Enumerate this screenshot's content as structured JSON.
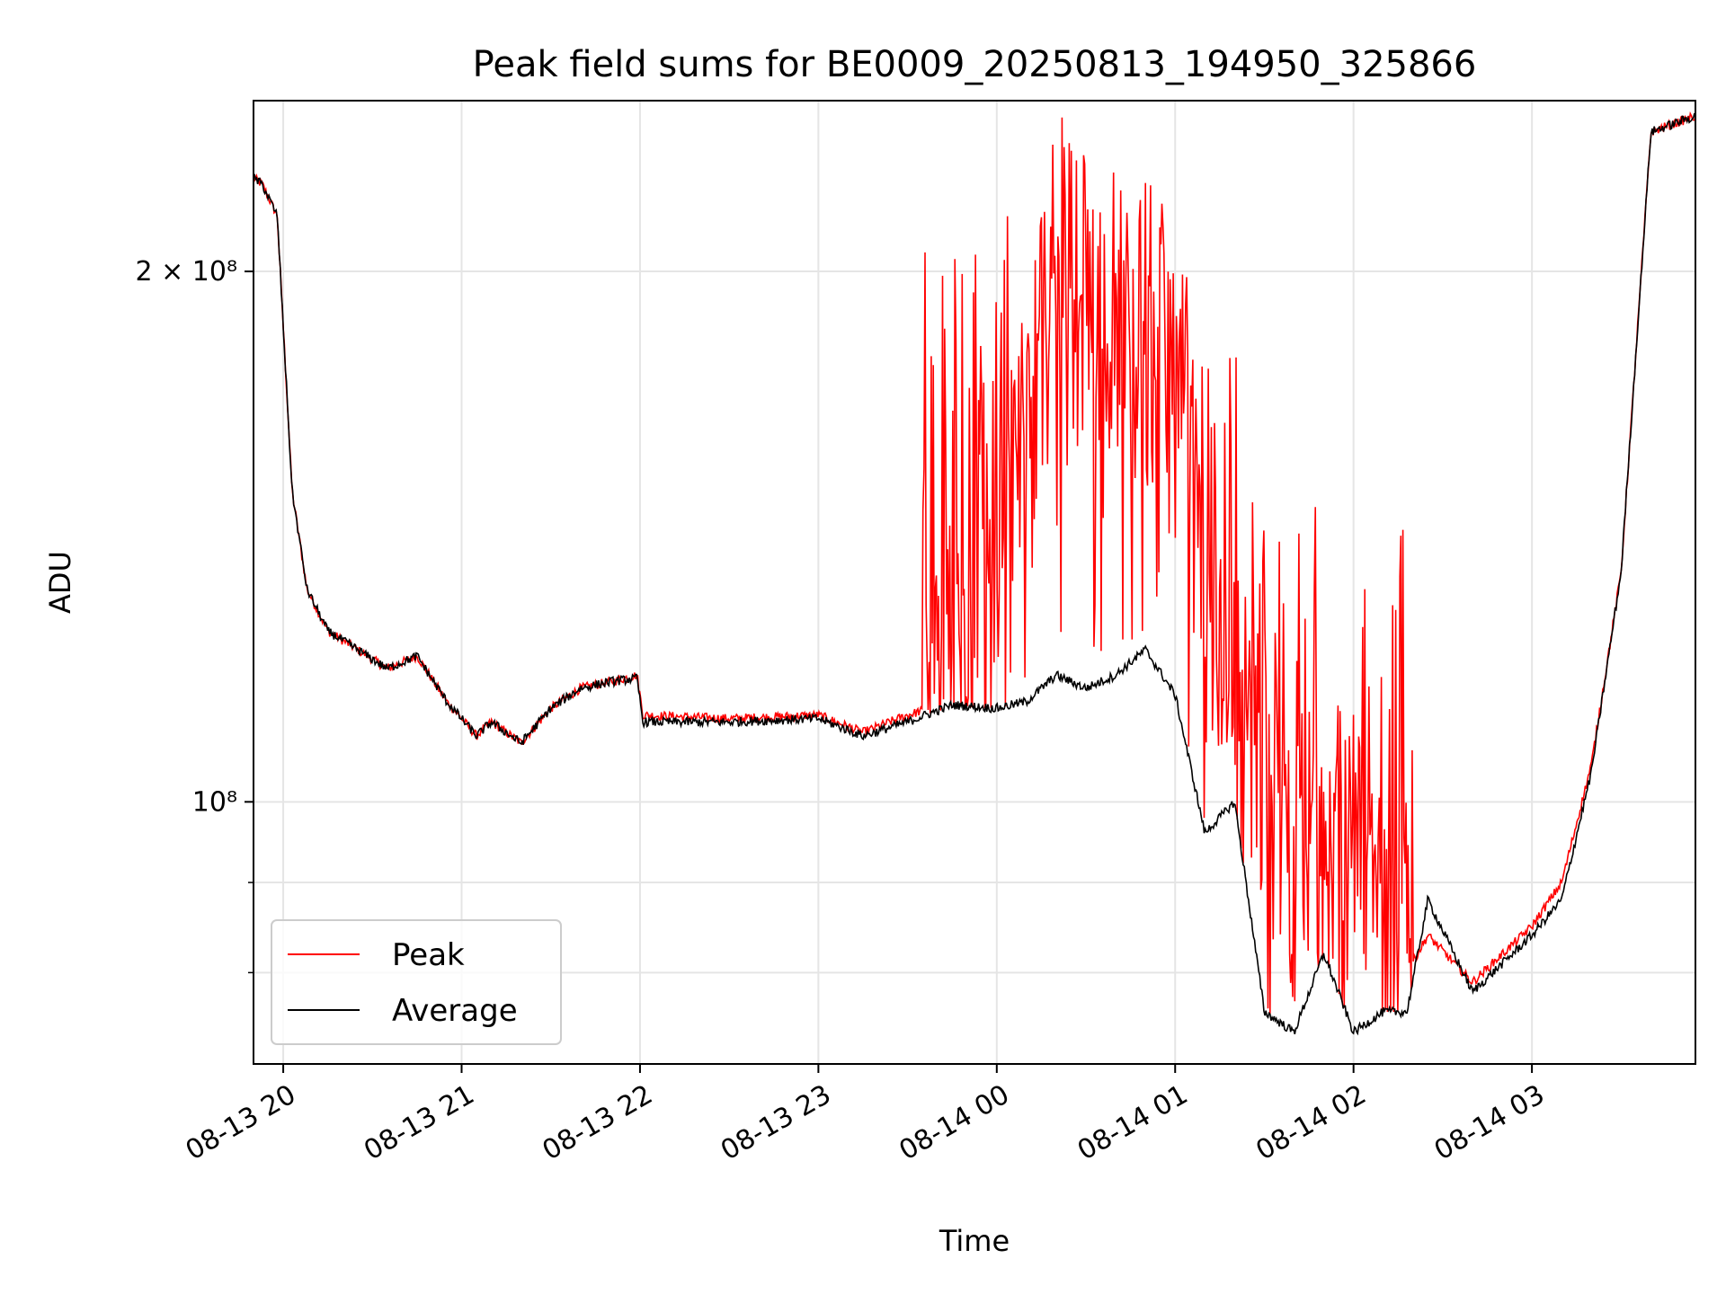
{
  "chart_data": {
    "type": "line",
    "title": "Peak field sums for BE0009_20250813_194950_325866",
    "xlabel": "Time",
    "ylabel": "ADU",
    "yscale": "log",
    "ylim": [
      71000000,
      250000000
    ],
    "xlim": [
      "2025-08-13 19:50",
      "2025-08-14 03:55"
    ],
    "grid": true,
    "legend_placement": "lower-left",
    "x_ticks": [
      {
        "value": "2025-08-13 20:00",
        "label": "08-13 20"
      },
      {
        "value": "2025-08-13 21:00",
        "label": "08-13 21"
      },
      {
        "value": "2025-08-13 22:00",
        "label": "08-13 22"
      },
      {
        "value": "2025-08-13 23:00",
        "label": "08-13 23"
      },
      {
        "value": "2025-08-14 00:00",
        "label": "08-14 00"
      },
      {
        "value": "2025-08-14 01:00",
        "label": "08-14 01"
      },
      {
        "value": "2025-08-14 02:00",
        "label": "08-14 02"
      },
      {
        "value": "2025-08-14 03:00",
        "label": "08-14 03"
      }
    ],
    "y_ticks_major": [
      {
        "value": 100000000,
        "label": "10⁸"
      },
      {
        "value": 200000000,
        "label": "2 × 10⁸"
      }
    ],
    "y_ticks_minor": [
      80000000,
      90000000
    ],
    "series": [
      {
        "name": "Peak",
        "color": "#ff0000",
        "x": [
          "2025-08-13 19:50",
          "2025-08-13 19:53",
          "2025-08-13 19:58",
          "2025-08-13 20:03",
          "2025-08-13 20:08",
          "2025-08-13 20:15",
          "2025-08-13 20:25",
          "2025-08-13 20:35",
          "2025-08-13 20:45",
          "2025-08-13 20:55",
          "2025-08-13 21:05",
          "2025-08-13 21:10",
          "2025-08-13 21:20",
          "2025-08-13 21:30",
          "2025-08-13 21:40",
          "2025-08-13 21:50",
          "2025-08-13 21:59",
          "2025-08-13 22:01",
          "2025-08-13 22:30",
          "2025-08-13 23:00",
          "2025-08-13 23:15",
          "2025-08-13 23:30",
          "2025-08-13 23:45",
          "2025-08-14 00:00",
          "2025-08-14 00:10",
          "2025-08-14 00:20",
          "2025-08-14 00:30",
          "2025-08-14 00:40",
          "2025-08-14 00:50",
          "2025-08-14 01:00",
          "2025-08-14 01:10",
          "2025-08-14 01:20",
          "2025-08-14 01:30",
          "2025-08-14 01:40",
          "2025-08-14 01:50",
          "2025-08-14 02:00",
          "2025-08-14 02:10",
          "2025-08-14 02:18",
          "2025-08-14 02:25",
          "2025-08-14 02:40",
          "2025-08-14 03:00",
          "2025-08-14 03:10",
          "2025-08-14 03:20",
          "2025-08-14 03:30",
          "2025-08-14 03:40",
          "2025-08-14 03:55"
        ],
        "values": [
          226000000,
          224000000,
          215000000,
          150000000,
          132000000,
          125000000,
          122000000,
          119000000,
          121000000,
          114000000,
          109000000,
          111000000,
          108000000,
          113000000,
          116000000,
          117000000,
          118000000,
          112000000,
          111500000,
          112000000,
          109500000,
          112000000,
          114000000,
          118000000,
          160000000,
          200000000,
          190000000,
          185000000,
          175000000,
          165000000,
          130000000,
          110000000,
          100000000,
          90000000,
          85000000,
          90000000,
          83000000,
          80000000,
          84000000,
          79000000,
          85000000,
          90000000,
          105000000,
          135000000,
          240000000,
          245000000
        ]
      },
      {
        "name": "Average",
        "color": "#000000",
        "x": [
          "2025-08-13 19:50",
          "2025-08-13 19:53",
          "2025-08-13 19:58",
          "2025-08-13 20:03",
          "2025-08-13 20:08",
          "2025-08-13 20:15",
          "2025-08-13 20:25",
          "2025-08-13 20:35",
          "2025-08-13 20:45",
          "2025-08-13 20:55",
          "2025-08-13 21:05",
          "2025-08-13 21:10",
          "2025-08-13 21:20",
          "2025-08-13 21:30",
          "2025-08-13 21:40",
          "2025-08-13 21:50",
          "2025-08-13 21:59",
          "2025-08-13 22:01",
          "2025-08-13 22:30",
          "2025-08-13 23:00",
          "2025-08-13 23:15",
          "2025-08-13 23:30",
          "2025-08-13 23:45",
          "2025-08-14 00:00",
          "2025-08-14 00:10",
          "2025-08-14 00:20",
          "2025-08-14 00:30",
          "2025-08-14 00:40",
          "2025-08-14 00:50",
          "2025-08-14 01:00",
          "2025-08-14 01:10",
          "2025-08-14 01:20",
          "2025-08-14 01:30",
          "2025-08-14 01:40",
          "2025-08-14 01:50",
          "2025-08-14 02:00",
          "2025-08-14 02:10",
          "2025-08-14 02:18",
          "2025-08-14 02:25",
          "2025-08-14 02:40",
          "2025-08-14 03:00",
          "2025-08-14 03:10",
          "2025-08-14 03:20",
          "2025-08-14 03:30",
          "2025-08-14 03:40",
          "2025-08-14 03:55"
        ],
        "values": [
          226000000,
          224000000,
          215000000,
          150000000,
          132000000,
          125000000,
          122000000,
          119000000,
          121000000,
          114000000,
          109000000,
          111000000,
          108000000,
          113000000,
          116000000,
          117000000,
          117500000,
          111000000,
          111000000,
          111500000,
          109000000,
          111000000,
          113500000,
          113000000,
          114000000,
          118000000,
          116000000,
          118000000,
          122000000,
          115000000,
          96000000,
          100000000,
          76000000,
          74000000,
          82000000,
          74000000,
          76000000,
          76000000,
          88000000,
          78000000,
          84000000,
          88000000,
          104000000,
          135000000,
          240000000,
          245000000
        ]
      }
    ]
  }
}
